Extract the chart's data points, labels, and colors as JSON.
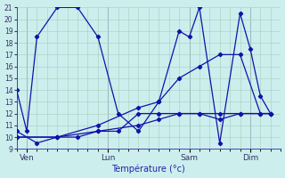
{
  "xlabel": "Température (°c)",
  "background_color": "#cceeed",
  "grid_color": "#aaccbb",
  "line_color": "#1111aa",
  "ylim": [
    9,
    21
  ],
  "yticks": [
    9,
    10,
    11,
    12,
    13,
    14,
    15,
    16,
    17,
    18,
    19,
    20,
    21
  ],
  "xtick_labels": [
    "Ven",
    "Lun",
    "Sam",
    "Dim"
  ],
  "xtick_positions": [
    1,
    9,
    17,
    23
  ],
  "xlim": [
    0,
    26
  ],
  "lines": [
    {
      "x": [
        0,
        1,
        2,
        4,
        6,
        8,
        10,
        12,
        14,
        16,
        17,
        18,
        20,
        22,
        23,
        24,
        25
      ],
      "y": [
        14,
        10.5,
        18.5,
        21,
        21,
        18.5,
        12,
        10.5,
        13,
        19,
        18.5,
        21,
        9.5,
        20.5,
        17.5,
        13.5,
        12
      ],
      "marker": true
    },
    {
      "x": [
        0,
        2,
        4,
        6,
        8,
        10,
        12,
        14,
        16,
        18,
        20,
        22,
        24,
        25
      ],
      "y": [
        10.5,
        9.5,
        10,
        10,
        10.5,
        10.5,
        12,
        12,
        12,
        12,
        11.5,
        12,
        12,
        12
      ],
      "marker": true
    },
    {
      "x": [
        0,
        4,
        8,
        12,
        14,
        16,
        18,
        20,
        22,
        24,
        25
      ],
      "y": [
        10,
        10,
        11,
        12.5,
        13,
        15,
        16,
        17,
        17,
        12,
        12
      ],
      "marker": true
    },
    {
      "x": [
        0,
        4,
        8,
        12,
        14,
        16,
        18,
        20,
        22,
        25
      ],
      "y": [
        10,
        10,
        10.5,
        11,
        11.5,
        12,
        12,
        12,
        12,
        12
      ],
      "marker": true
    }
  ]
}
